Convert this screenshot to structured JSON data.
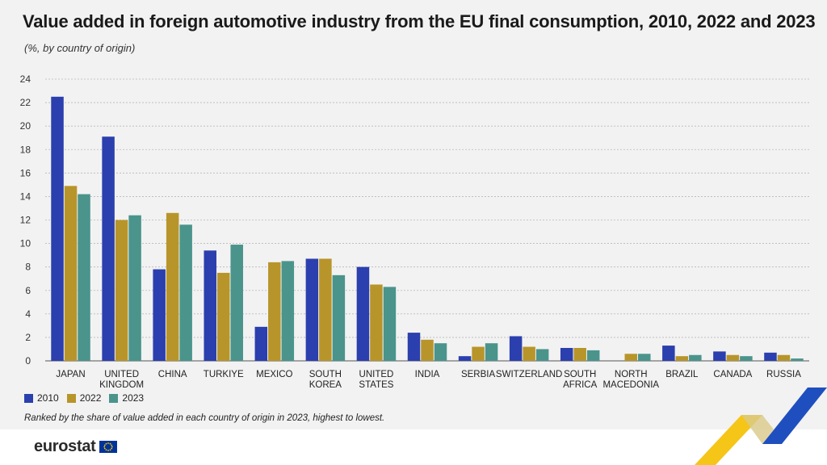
{
  "title": "Value added in foreign automotive industry from the EU final consumption, 2010, 2022 and 2023",
  "subtitle": "(%, by country of origin)",
  "note": "Ranked by the share of value added in each country of origin in 2023, highest to lowest.",
  "logo_text": "eurostat",
  "colors": {
    "2010": "#2b3fae",
    "2022": "#b8952a",
    "2023": "#4a948c"
  },
  "chart_data": {
    "type": "bar",
    "title": "Value added in foreign automotive industry from the EU final consumption, 2010, 2022 and 2023",
    "ylabel": "%",
    "ylim": [
      0,
      24
    ],
    "yticks": [
      0,
      2,
      4,
      6,
      8,
      10,
      12,
      14,
      16,
      18,
      20,
      22,
      24
    ],
    "grid": true,
    "legend": "bottom-left",
    "categories": [
      [
        "JAPAN"
      ],
      [
        "UNITED",
        "KINGDOM"
      ],
      [
        "CHINA"
      ],
      [
        "TURKIYE"
      ],
      [
        "MEXICO"
      ],
      [
        "SOUTH",
        "KOREA"
      ],
      [
        "UNITED",
        "STATES"
      ],
      [
        "INDIA"
      ],
      [
        "SERBIA"
      ],
      [
        "SWITZERLAND"
      ],
      [
        "SOUTH",
        "AFRICA"
      ],
      [
        "NORTH",
        "MACEDONIA"
      ],
      [
        "BRAZIL"
      ],
      [
        "CANADA"
      ],
      [
        "RUSSIA"
      ]
    ],
    "series": [
      {
        "name": "2010",
        "values": [
          22.5,
          19.1,
          7.8,
          9.4,
          2.9,
          8.7,
          8.0,
          2.4,
          0.4,
          2.1,
          1.1,
          0.0,
          1.3,
          0.8,
          0.7
        ]
      },
      {
        "name": "2022",
        "values": [
          14.9,
          12.0,
          12.6,
          7.5,
          8.4,
          8.7,
          6.5,
          1.8,
          1.2,
          1.2,
          1.1,
          0.6,
          0.4,
          0.5,
          0.5
        ]
      },
      {
        "name": "2023",
        "values": [
          14.2,
          12.4,
          11.6,
          9.9,
          8.5,
          7.3,
          6.3,
          1.5,
          1.5,
          1.0,
          0.9,
          0.6,
          0.5,
          0.4,
          0.2
        ]
      }
    ]
  }
}
